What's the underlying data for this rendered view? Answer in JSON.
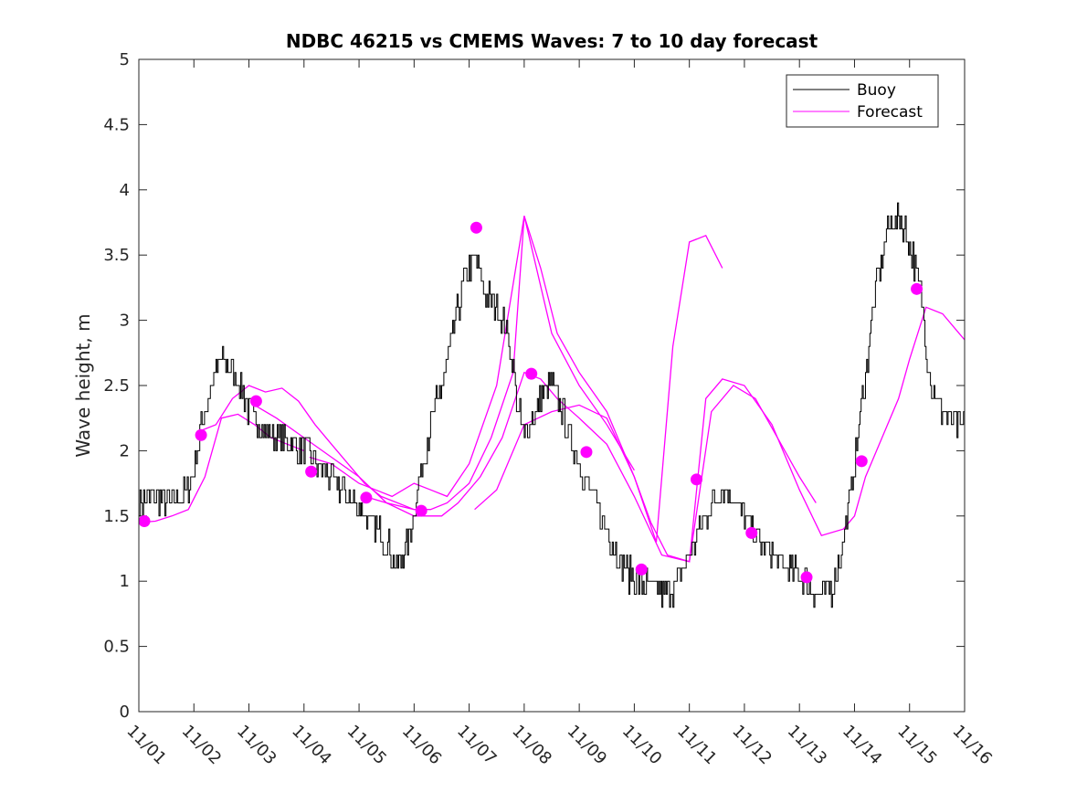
{
  "chart_data": {
    "type": "line",
    "title": "NDBC 46215 vs CMEMS Waves: 7 to 10 day forecast",
    "xlabel": "",
    "ylabel": "Wave height, m",
    "ylim": [
      0,
      5
    ],
    "xlim": [
      0,
      15
    ],
    "yticks": [
      0,
      0.5,
      1,
      1.5,
      2,
      2.5,
      3,
      3.5,
      4,
      4.5,
      5
    ],
    "ytick_labels": [
      "0",
      "0.5",
      "1",
      "1.5",
      "2",
      "2.5",
      "3",
      "3.5",
      "4",
      "4.5",
      "5"
    ],
    "xticks": [
      0,
      1,
      2,
      3,
      4,
      5,
      6,
      7,
      8,
      9,
      10,
      11,
      12,
      13,
      14,
      15
    ],
    "xtick_labels": [
      "11/01",
      "11/02",
      "11/03",
      "11/04",
      "11/05",
      "11/06",
      "11/07",
      "11/08",
      "11/09",
      "11/10",
      "11/11",
      "11/12",
      "11/13",
      "11/14",
      "11/15",
      "11/16"
    ],
    "legend": {
      "position": "top-right",
      "entries": [
        {
          "label": "Buoy",
          "color": "#000000"
        },
        {
          "label": "Forecast",
          "color": "#ff00ff"
        }
      ]
    },
    "colors": {
      "buoy": "#000000",
      "forecast": "#ff00ff",
      "axes": "#262626"
    },
    "series": [
      {
        "name": "Buoy",
        "x": [
          0,
          0.3,
          0.6,
          0.9,
          1.0,
          1.15,
          1.3,
          1.5,
          1.7,
          1.85,
          2.0,
          2.3,
          2.6,
          2.8,
          3.0,
          3.3,
          3.6,
          3.8,
          4.0,
          4.2,
          4.5,
          4.7,
          4.9,
          5.1,
          5.3,
          5.5,
          5.7,
          5.9,
          6.1,
          6.3,
          6.5,
          6.7,
          6.8,
          6.9,
          7.0,
          7.1,
          7.3,
          7.5,
          7.7,
          7.9,
          8.1,
          8.3,
          8.5,
          8.7,
          8.9,
          9.1,
          9.3,
          9.5,
          9.7,
          9.9,
          10.2,
          10.4,
          10.6,
          10.8,
          11.0,
          11.2,
          11.4,
          11.6,
          11.8,
          12.0,
          12.2,
          12.4,
          12.6,
          12.8,
          13.0,
          13.2,
          13.4,
          13.6,
          13.8,
          14.0,
          14.2,
          14.3,
          14.4,
          14.6,
          14.8,
          15.0
        ],
        "values": [
          1.6,
          1.65,
          1.6,
          1.7,
          1.9,
          2.2,
          2.5,
          2.7,
          2.6,
          2.5,
          2.3,
          2.15,
          2.1,
          2.05,
          2.0,
          1.85,
          1.75,
          1.65,
          1.55,
          1.45,
          1.3,
          1.1,
          1.3,
          1.8,
          2.2,
          2.5,
          2.9,
          3.3,
          3.5,
          3.2,
          3.1,
          2.9,
          2.6,
          2.3,
          2.1,
          2.2,
          2.4,
          2.5,
          2.3,
          2.0,
          1.8,
          1.6,
          1.4,
          1.2,
          1.05,
          1.0,
          0.95,
          0.9,
          0.95,
          1.1,
          1.4,
          1.6,
          1.7,
          1.65,
          1.5,
          1.35,
          1.25,
          1.15,
          1.1,
          1.05,
          0.95,
          0.9,
          0.95,
          1.3,
          1.9,
          2.6,
          3.3,
          3.7,
          3.8,
          3.6,
          3.2,
          2.8,
          2.5,
          2.3,
          2.2,
          2.2
        ]
      },
      {
        "name": "Forecast",
        "segments": [
          {
            "x": [
              0,
              0.3,
              0.6,
              0.9,
              1.2,
              1.5,
              1.8,
              2.1,
              2.4,
              2.7,
              3.0
            ],
            "values": [
              1.45,
              1.46,
              1.5,
              1.55,
              1.8,
              2.25,
              2.28,
              2.2,
              2.1,
              2.05,
              2.0
            ]
          },
          {
            "x": [
              1.1,
              1.4,
              1.7,
              2.0,
              2.3,
              2.6,
              2.9,
              3.2,
              3.5,
              3.8,
              4.1,
              4.4,
              4.7,
              5.0
            ],
            "values": [
              2.15,
              2.2,
              2.4,
              2.5,
              2.45,
              2.48,
              2.38,
              2.2,
              2.05,
              1.9,
              1.75,
              1.65,
              1.6,
              1.55
            ]
          },
          {
            "x": [
              2.1,
              2.5,
              3.0,
              3.5,
              4.0,
              4.5,
              5.0,
              5.3,
              5.6,
              6.0,
              6.4,
              6.8,
              7.0,
              7.5,
              8.0,
              8.5,
              9.0
            ],
            "values": [
              2.35,
              2.25,
              2.1,
              1.95,
              1.8,
              1.6,
              1.55,
              1.55,
              1.6,
              1.75,
              2.1,
              2.6,
              3.8,
              2.9,
              2.5,
              2.2,
              1.85
            ]
          },
          {
            "x": [
              3.1,
              3.5,
              4.0,
              4.3,
              4.6,
              5.0,
              5.3,
              5.6,
              6.0,
              6.5,
              7.0,
              7.3,
              7.6,
              8.0,
              8.5,
              9.0,
              9.4,
              9.7,
              10.0,
              10.3,
              10.6
            ],
            "values": [
              1.95,
              1.9,
              1.75,
              1.7,
              1.65,
              1.75,
              1.7,
              1.65,
              1.9,
              2.5,
              3.8,
              3.4,
              2.9,
              2.6,
              2.3,
              1.8,
              1.3,
              2.8,
              3.6,
              3.65,
              3.4
            ]
          },
          {
            "x": [
              4.1,
              4.5,
              5.0,
              5.5,
              5.8,
              6.2,
              6.6,
              7.0,
              7.3,
              7.6,
              8.0,
              8.5,
              9.0,
              9.5,
              10.0,
              10.4,
              10.8,
              11.2,
              11.6,
              12.0,
              12.3
            ],
            "values": [
              1.65,
              1.6,
              1.5,
              1.5,
              1.6,
              1.8,
              2.1,
              2.6,
              2.55,
              2.4,
              2.25,
              2.05,
              1.65,
              1.2,
              1.15,
              2.3,
              2.5,
              2.4,
              2.1,
              1.8,
              1.6
            ]
          },
          {
            "x": [
              6.1,
              6.5,
              7.0,
              7.5,
              8.0,
              8.5,
              9.0,
              9.3,
              9.6,
              10.0,
              10.3,
              10.6,
              11.0,
              11.5,
              12.0,
              12.4,
              12.8,
              13.0,
              13.2,
              13.5,
              13.8,
              14.0,
              14.3,
              14.6,
              14.9,
              15.0
            ],
            "values": [
              1.55,
              1.7,
              2.2,
              2.3,
              2.35,
              2.25,
              1.8,
              1.45,
              1.2,
              1.15,
              2.4,
              2.55,
              2.5,
              2.2,
              1.7,
              1.35,
              1.4,
              1.5,
              1.8,
              2.1,
              2.4,
              2.7,
              3.1,
              3.05,
              2.9,
              2.85
            ]
          }
        ]
      }
    ],
    "markers": {
      "name": "Forecast initial points",
      "x": [
        0.1,
        1.13,
        2.13,
        3.13,
        4.13,
        5.13,
        6.13,
        7.13,
        8.13,
        9.13,
        10.13,
        11.13,
        12.13,
        13.13,
        14.13
      ],
      "values": [
        1.46,
        2.12,
        2.38,
        1.84,
        1.64,
        1.54,
        3.71,
        2.59,
        1.99,
        1.09,
        1.78,
        1.37,
        1.03,
        1.92,
        3.24
      ]
    }
  }
}
